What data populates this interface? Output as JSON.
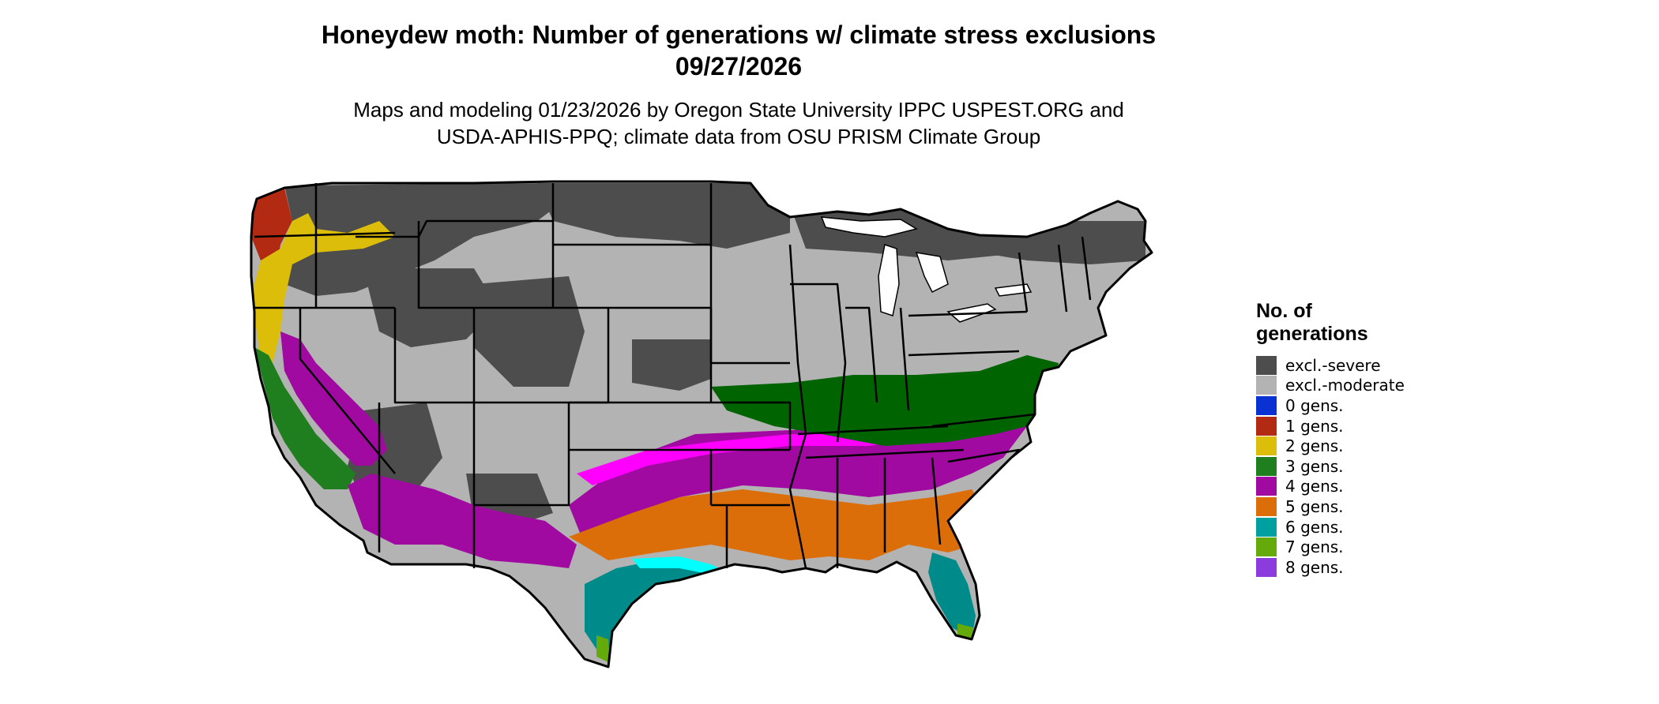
{
  "title": {
    "line1": "Honeydew moth: Number of generations w/ climate stress exclusions",
    "line2": "09/27/2026"
  },
  "subtitle": {
    "line1": "Maps and modeling 01/23/2026 by Oregon State University IPPC USPEST.ORG and",
    "line2": "USDA-APHIS-PPQ; climate data from OSU PRISM Climate Group"
  },
  "legend": {
    "title_line1": "No. of",
    "title_line2": "generations",
    "items": [
      {
        "label": "excl.-severe",
        "color": "#4d4d4d"
      },
      {
        "label": "excl.-moderate",
        "color": "#b3b3b3"
      },
      {
        "label": "0 gens.",
        "color": "#0a32d2"
      },
      {
        "label": "1 gens.",
        "color": "#b22a12"
      },
      {
        "label": "2 gens.",
        "color": "#dcbe0a"
      },
      {
        "label": "3 gens.",
        "color": "#1f7f1f"
      },
      {
        "label": "4 gens.",
        "color": "#a00aa0"
      },
      {
        "label": "5 gens.",
        "color": "#dc6e0a"
      },
      {
        "label": "6 gens.",
        "color": "#00a0a0"
      },
      {
        "label": "7 gens.",
        "color": "#64aa0a"
      },
      {
        "label": "8 gens.",
        "color": "#8c3cdc"
      }
    ]
  },
  "map_colors": {
    "outline": "#000000",
    "bright_magenta": "#ff00ff",
    "dark_green": "#006400",
    "cyan": "#00ffff",
    "dark_teal": "#008b8b"
  }
}
